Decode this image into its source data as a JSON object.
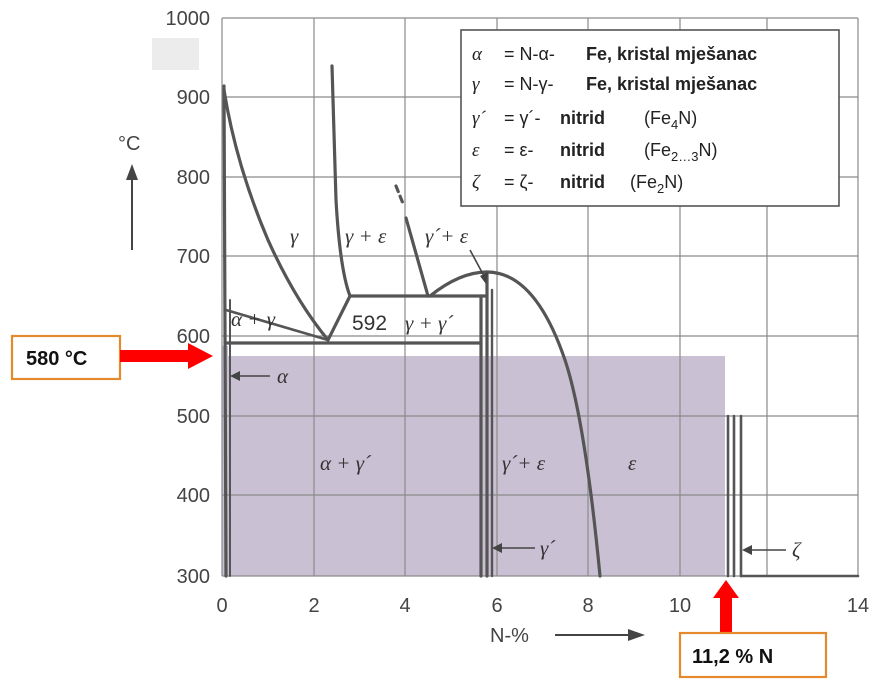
{
  "axes": {
    "x": {
      "ticks": [
        "0",
        "2",
        "4",
        "6",
        "8",
        "10",
        "14"
      ],
      "label": "N-%"
    },
    "y": {
      "ticks": [
        "300",
        "400",
        "500",
        "600",
        "700",
        "800",
        "900",
        "1000"
      ],
      "label": "°C"
    }
  },
  "legend": [
    {
      "symbol": "α",
      "eq": "= N-α-",
      "text": "Fe, kristal mješanac",
      "sub": "",
      "tail": ""
    },
    {
      "symbol": "γ",
      "eq": "= N-γ-",
      "text": "Fe, kristal mješanac",
      "sub": "",
      "tail": ""
    },
    {
      "symbol": "γ´",
      "eq": "= γ´-",
      "text": "nitrid",
      "formula": "(Fe",
      "sub": "4",
      "tail": "N)"
    },
    {
      "symbol": "ε",
      "eq": "= ε-",
      "text": "nitrid",
      "formula": "(Fe",
      "sub": "2…3",
      "tail": "N)"
    },
    {
      "symbol": "ζ",
      "eq": "= ζ-",
      "text": "nitrid",
      "formula": "(Fe",
      "sub": "2",
      "tail": "N)"
    }
  ],
  "phase_labels": {
    "gamma": "γ",
    "gamma_eps": "γ + ε",
    "gammaprime_eps_top": "γ´+ ε",
    "alpha_gamma": "α + γ",
    "eutectoid": "592",
    "gamma_gammaprime": "γ + γ´",
    "alpha_arrow": "α",
    "alpha_gammaprime": "α + γ´",
    "gammaprime_eps": "γ´+ ε",
    "eps": "ε",
    "gammaprime_arrow": "γ´",
    "zeta_arrow": "ζ"
  },
  "callouts": {
    "temperature": "580 °C",
    "nitrogen": "11,2 % N"
  },
  "colors": {
    "shading": "#c9c0d3",
    "arrow": "#ff0000",
    "callout_border": "#e4892c",
    "grid": "#8a8a8a",
    "lines": "#555555"
  }
}
